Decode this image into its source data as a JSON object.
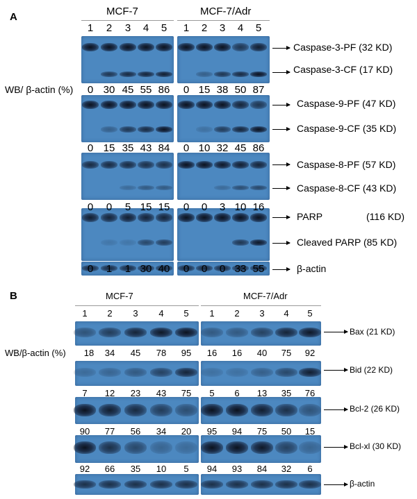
{
  "panel_a": {
    "letter": "A",
    "cell_lines": [
      "MCF-7",
      "MCF-7/Adr"
    ],
    "lanes": [
      "1",
      "2",
      "3",
      "4",
      "5"
    ],
    "wb_label": "WB/ β-actin (%)",
    "rows": [
      {
        "labels": [
          "Caspase-3-PF (32 KD)",
          "Caspase-3-CF (17 KD)"
        ],
        "values_left": [
          "0",
          "30",
          "45",
          "55",
          "86"
        ],
        "values_right": [
          "0",
          "15",
          "38",
          "50",
          "87"
        ]
      },
      {
        "labels": [
          "Caspase-9-PF (47 KD)",
          "Caspase-9-CF (35 KD)"
        ],
        "values_left": [
          "0",
          "15",
          "35",
          "43",
          "84"
        ],
        "values_right": [
          "0",
          "10",
          "32",
          "45",
          "86"
        ]
      },
      {
        "labels": [
          "Caspase-8-PF (57 KD)",
          "Caspase-8-CF (43 KD)"
        ],
        "values_left": [
          "0",
          "0",
          "5",
          "15",
          "15"
        ],
        "values_right": [
          "0",
          "0",
          "3",
          "10",
          "16"
        ]
      },
      {
        "labels": [
          "PARP",
          "Cleaved PARP (85 KD)"
        ],
        "extra": "(116 KD)",
        "values_left": [
          "0",
          "1",
          "1",
          "30",
          "40"
        ],
        "values_right": [
          "0",
          "0",
          "0",
          "33",
          "55"
        ]
      },
      {
        "labels": [
          "β-actin"
        ]
      }
    ]
  },
  "panel_b": {
    "letter": "B",
    "cell_lines": [
      "MCF-7",
      "MCF-7/Adr"
    ],
    "lanes": [
      "1",
      "2",
      "3",
      "4",
      "5"
    ],
    "wb_label": "WB/β-actin (%)",
    "rows": [
      {
        "label": "Bax (21 KD)",
        "values_left": [
          "18",
          "34",
          "45",
          "78",
          "95"
        ],
        "values_right": [
          "16",
          "16",
          "40",
          "75",
          "92"
        ]
      },
      {
        "label": "Bid (22 KD)",
        "values_left": [
          "7",
          "12",
          "23",
          "43",
          "75"
        ],
        "values_right": [
          "5",
          "6",
          "13",
          "35",
          "76"
        ]
      },
      {
        "label": "Bcl-2 (26 KD)",
        "values_left": [
          "90",
          "77",
          "56",
          "34",
          "20"
        ],
        "values_right": [
          "95",
          "94",
          "75",
          "50",
          "15"
        ]
      },
      {
        "label": "Bcl-xl (30 KD)",
        "values_left": [
          "92",
          "66",
          "35",
          "10",
          "5"
        ],
        "values_right": [
          "94",
          "93",
          "84",
          "32",
          "6"
        ]
      },
      {
        "label": "β-actin"
      }
    ]
  }
}
